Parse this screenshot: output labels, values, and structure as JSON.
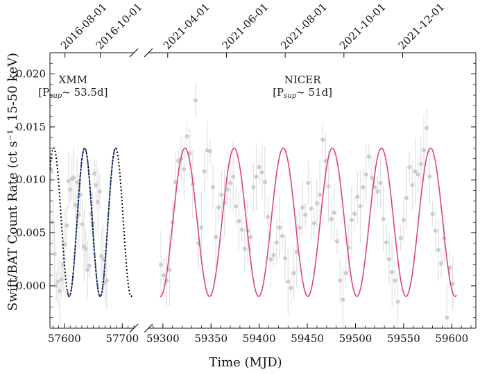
{
  "chart_data": {
    "type": "scatter",
    "xlabel": "Time (MJD)",
    "ylabel": "Swift/BAT Count Rate (ct s⁻¹, 15-50 keV)",
    "ylim": [
      -0.004,
      0.022
    ],
    "yticks": [
      0.0,
      0.005,
      0.01,
      0.015,
      0.02
    ],
    "ytick_labels": [
      "0.000",
      "0.005",
      "0.010",
      "0.015",
      "0.020"
    ],
    "panels": [
      {
        "name": "XMM",
        "xlim": [
          57575,
          57720
        ],
        "xticks": [
          57600,
          57700
        ],
        "xtick_labels": [
          "57600",
          "57700"
        ],
        "top_ticks": [
          57601,
          57662
        ],
        "top_tick_labels": [
          "2016-08-01",
          "2016-10-01"
        ],
        "annotation_title": "XMM",
        "annotation_period": "[P",
        "annotation_period_sub": "sup",
        "annotation_period_value": "~ 53.5d]",
        "model": {
          "period": 53.5,
          "mean": 0.006,
          "amplitude": 0.007,
          "peak_time": 57635
        },
        "model_full_range": [
          57575,
          57717
        ],
        "model_fit_range": [
          57605,
          57690
        ],
        "points": [
          [
            57577,
            0.0108
          ],
          [
            57580,
            0.006
          ],
          [
            57583,
            0.003
          ],
          [
            57586,
            0.0
          ],
          [
            57589,
            0.0004
          ],
          [
            57592,
            -0.0005
          ],
          [
            57595,
            0.0006
          ],
          [
            57598,
            0.002
          ],
          [
            57601,
            0.0039
          ],
          [
            57604,
            0.0057
          ],
          [
            57607,
            0.0099
          ],
          [
            57610,
            0.0091
          ],
          [
            57613,
            0.0101
          ],
          [
            57616,
            0.0102
          ],
          [
            57619,
            0.0076
          ],
          [
            57622,
            0.0098
          ],
          [
            57625,
            0.0067
          ],
          [
            57628,
            0.0086
          ],
          [
            57631,
            0.0058
          ],
          [
            57634,
            0.0037
          ],
          [
            57637,
            0.0035
          ],
          [
            57640,
            0.0015
          ],
          [
            57643,
            0.0019
          ],
          [
            57646,
            0.0068
          ],
          [
            57649,
            0.0059
          ],
          [
            57652,
            0.0106
          ],
          [
            57655,
            0.0095
          ],
          [
            57658,
            0.0079
          ],
          [
            57661,
            0.0089
          ],
          [
            57664,
            0.0028
          ],
          [
            57667,
            0.0025
          ],
          [
            57670,
            0.0003
          ],
          [
            57673,
            0.0005
          ]
        ]
      },
      {
        "name": "NICER",
        "xlim": [
          59285,
          59625
        ],
        "xticks": [
          59300,
          59350,
          59400,
          59450,
          59500,
          59550,
          59600
        ],
        "xtick_labels": [
          "59300",
          "59350",
          "59400",
          "59450",
          "59500",
          "59550",
          "59600"
        ],
        "top_ticks": [
          59305,
          59366,
          59427,
          59488,
          59549
        ],
        "top_tick_labels": [
          "2021-04-01",
          "2021-06-01",
          "2021-08-01",
          "2021-10-01",
          "2021-12-01"
        ],
        "annotation_title": "NICER",
        "annotation_period": "[P",
        "annotation_period_sub": "sup",
        "annotation_period_value": "~ 51d]",
        "model": {
          "period": 51,
          "mean": 0.006,
          "amplitude": 0.007,
          "peak_time": 59323
        },
        "model_fit_range": [
          59297,
          59605
        ],
        "points": [
          [
            59298,
            0.002
          ],
          [
            59301,
            0.001
          ],
          [
            59304,
            0.0005
          ],
          [
            59307,
            0.0015
          ],
          [
            59310,
            0.006
          ],
          [
            59313,
            0.0098
          ],
          [
            59316,
            0.0118
          ],
          [
            59319,
            0.012
          ],
          [
            59322,
            0.011
          ],
          [
            59325,
            0.0141
          ],
          [
            59328,
            0.0125
          ],
          [
            59331,
            0.0096
          ],
          [
            59334,
            0.0175
          ],
          [
            59337,
            0.004
          ],
          [
            59340,
            0.0055
          ],
          [
            59343,
            0.0108
          ],
          [
            59346,
            0.0128
          ],
          [
            59349,
            0.0127
          ],
          [
            59352,
            0.0093
          ],
          [
            59355,
            0.0046
          ],
          [
            59358,
            0.0074
          ],
          [
            59361,
            0.0086
          ],
          [
            59364,
            0.0078
          ],
          [
            59367,
            0.0091
          ],
          [
            59370,
            0.0097
          ],
          [
            59373,
            0.0103
          ],
          [
            59376,
            0.0075
          ],
          [
            59379,
            0.0061
          ],
          [
            59382,
            0.0053
          ],
          [
            59385,
            0.0035
          ],
          [
            59388,
            0.0052
          ],
          [
            59391,
            0.0046
          ],
          [
            59394,
            0.0093
          ],
          [
            59397,
            0.0103
          ],
          [
            59400,
            0.0112
          ],
          [
            59403,
            0.0107
          ],
          [
            59406,
            0.0098
          ],
          [
            59409,
            0.0065
          ],
          [
            59412,
            0.0025
          ],
          [
            59415,
            0.0029
          ],
          [
            59418,
            0.0041
          ],
          [
            59421,
            0.0055
          ],
          [
            59424,
            0.0047
          ],
          [
            59427,
            0.0026
          ],
          [
            59430,
            0.0004
          ],
          [
            59433,
            -0.0002
          ],
          [
            59436,
            0.0012
          ],
          [
            59439,
            0.0032
          ],
          [
            59442,
            0.0055
          ],
          [
            59445,
            0.0074
          ],
          [
            59448,
            0.0067
          ],
          [
            59451,
            0.0097
          ],
          [
            59454,
            0.0073
          ],
          [
            59457,
            0.0059
          ],
          [
            59460,
            0.0078
          ],
          [
            59463,
            0.0086
          ],
          [
            59466,
            0.0138
          ],
          [
            59469,
            0.0118
          ],
          [
            59472,
            0.0094
          ],
          [
            59475,
            0.0063
          ],
          [
            59478,
            0.0069
          ],
          [
            59481,
            0.0042
          ],
          [
            59484,
            0.0005
          ],
          [
            59487,
            -0.0013
          ],
          [
            59490,
            0.0012
          ],
          [
            59493,
            0.0036
          ],
          [
            59496,
            0.0062
          ],
          [
            59499,
            0.0068
          ],
          [
            59502,
            0.0084
          ],
          [
            59505,
            0.0075
          ],
          [
            59508,
            0.0093
          ],
          [
            59511,
            0.0105
          ],
          [
            59514,
            0.0122
          ],
          [
            59517,
            0.0102
          ],
          [
            59520,
            0.0093
          ],
          [
            59523,
            0.0089
          ],
          [
            59526,
            0.0097
          ],
          [
            59529,
            0.0063
          ],
          [
            59532,
            0.0041
          ],
          [
            59535,
            0.0025
          ],
          [
            59538,
            0.0013
          ],
          [
            59541,
            0.0005
          ],
          [
            59544,
            -0.0015
          ],
          [
            59547,
            0.0045
          ],
          [
            59550,
            0.0062
          ],
          [
            59553,
            0.0083
          ],
          [
            59556,
            0.0112
          ],
          [
            59559,
            0.0095
          ],
          [
            59562,
            0.0108
          ],
          [
            59565,
            0.0105
          ],
          [
            59568,
            0.0115
          ],
          [
            59571,
            0.0128
          ],
          [
            59574,
            0.0149
          ],
          [
            59577,
            0.0103
          ],
          [
            59580,
            0.0068
          ],
          [
            59583,
            0.0052
          ],
          [
            59586,
            0.0034
          ],
          [
            59589,
            0.0021
          ],
          [
            59592,
            0.0045
          ],
          [
            59595,
            -0.003
          ],
          [
            59598,
            0.0017
          ],
          [
            59601,
            0.0002
          ]
        ]
      }
    ],
    "colors": {
      "points": "#cccccc",
      "errorbars": "#e0e0e0",
      "xmm_full_model": "#000000",
      "xmm_fit_model": "#1f3f9e",
      "nicer_model": "#e0407e",
      "axes": "#111111"
    }
  }
}
